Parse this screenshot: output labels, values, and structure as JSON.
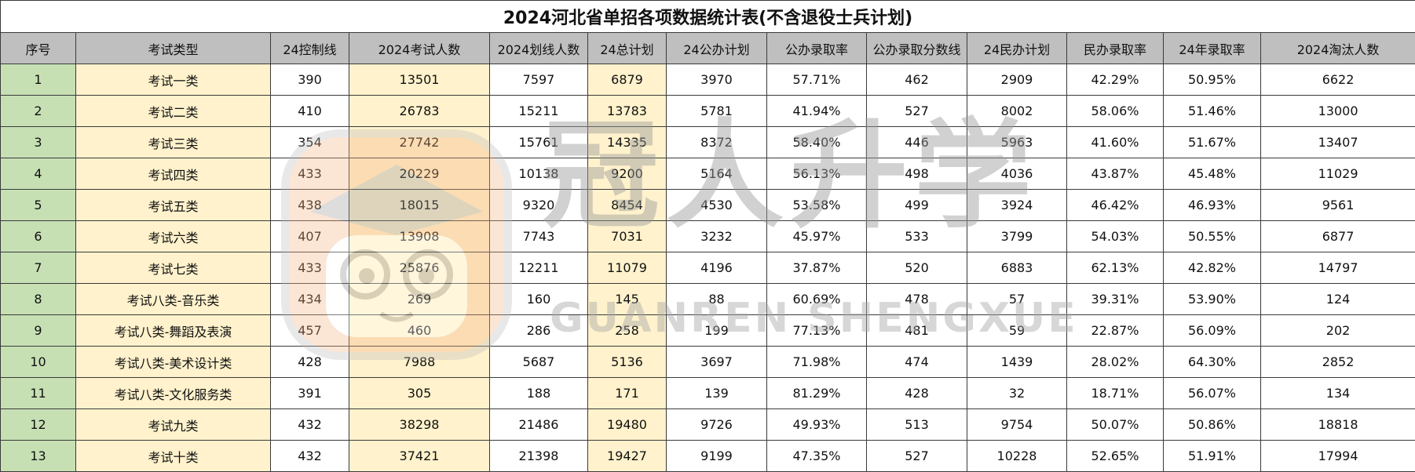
{
  "title": "2024河北省单招各项数据统计表(不含退役士兵计划)",
  "headers": [
    "序号",
    "考试类型",
    "24控制线",
    "2024考试人数",
    "2024划线人数",
    "24总计划",
    "24公办计划",
    "公办录取率",
    "公办录取分数线",
    "24民办计划",
    "民办录取率",
    "24年录取率",
    "2024淘汰人数"
  ],
  "rows": [
    [
      "1",
      "考试一类",
      "390",
      "13501",
      "7597",
      "6879",
      "3970",
      "57.71%",
      "462",
      "2909",
      "42.29%",
      "50.95%",
      "6622"
    ],
    [
      "2",
      "考试二类",
      "410",
      "26783",
      "15211",
      "13783",
      "5781",
      "41.94%",
      "527",
      "8002",
      "58.06%",
      "51.46%",
      "13000"
    ],
    [
      "3",
      "考试三类",
      "354",
      "27742",
      "15761",
      "14335",
      "8372",
      "58.40%",
      "446",
      "5963",
      "41.60%",
      "51.67%",
      "13407"
    ],
    [
      "4",
      "考试四类",
      "433",
      "20229",
      "10138",
      "9200",
      "5164",
      "56.13%",
      "498",
      "4036",
      "43.87%",
      "45.48%",
      "11029"
    ],
    [
      "5",
      "考试五类",
      "438",
      "18015",
      "9320",
      "8454",
      "4530",
      "53.58%",
      "499",
      "3924",
      "46.42%",
      "46.93%",
      "9561"
    ],
    [
      "6",
      "考试六类",
      "407",
      "13908",
      "7743",
      "7031",
      "3232",
      "45.97%",
      "533",
      "3799",
      "54.03%",
      "50.55%",
      "6877"
    ],
    [
      "7",
      "考试七类",
      "433",
      "25876",
      "12211",
      "11079",
      "4196",
      "37.87%",
      "520",
      "6883",
      "62.13%",
      "42.82%",
      "14797"
    ],
    [
      "8",
      "考试八类-音乐类",
      "434",
      "269",
      "160",
      "145",
      "88",
      "60.69%",
      "478",
      "57",
      "39.31%",
      "53.90%",
      "124"
    ],
    [
      "9",
      "考试八类-舞蹈及表演",
      "457",
      "460",
      "286",
      "258",
      "199",
      "77.13%",
      "481",
      "59",
      "22.87%",
      "56.09%",
      "202"
    ],
    [
      "10",
      "考试八类-美术设计类",
      "428",
      "7988",
      "5687",
      "5136",
      "3697",
      "71.98%",
      "474",
      "1439",
      "28.02%",
      "64.30%",
      "2852"
    ],
    [
      "11",
      "考试八类-文化服务类",
      "391",
      "305",
      "188",
      "171",
      "139",
      "81.29%",
      "428",
      "32",
      "18.71%",
      "56.07%",
      "134"
    ],
    [
      "12",
      "考试九类",
      "432",
      "38298",
      "21486",
      "19480",
      "9726",
      "49.93%",
      "513",
      "9754",
      "50.07%",
      "50.86%",
      "18818"
    ],
    [
      "13",
      "考试十类",
      "432",
      "37421",
      "21398",
      "19427",
      "9199",
      "47.35%",
      "527",
      "10228",
      "52.65%",
      "51.91%",
      "17994"
    ]
  ],
  "watermark": {
    "cn": "冠人升学",
    "en": "GUANREN SHENGXUE",
    "logo_icon": "mascot-cat-icon"
  },
  "colors": {
    "header_bg": "#bfbfbf",
    "index_col_bg": "#c6e0b4",
    "type_col_bg": "#fff2cc",
    "highlight_col_bg": "#fff2cc",
    "border": "#3a3a3a"
  }
}
